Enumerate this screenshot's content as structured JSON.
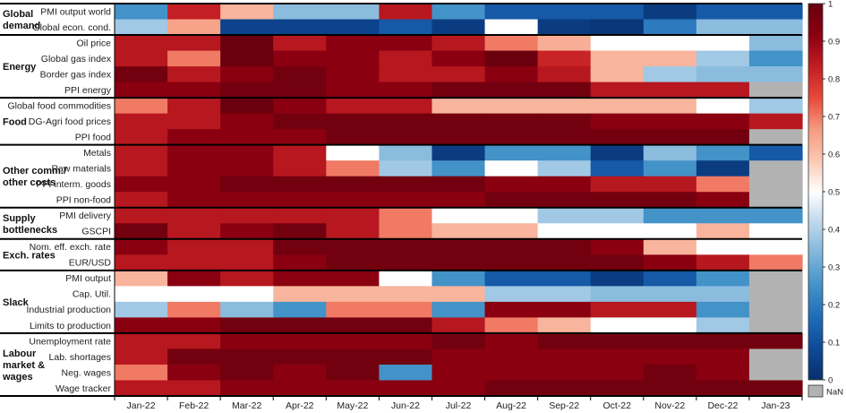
{
  "chart_data": {
    "type": "heatmap",
    "columns": [
      "Jan-22",
      "Feb-22",
      "Mar-22",
      "Apr-22",
      "May-22",
      "Jun-22",
      "Jul-22",
      "Aug-22",
      "Sep-22",
      "Oct-22",
      "Nov-22",
      "Dec-22",
      "Jan-23"
    ],
    "groups": [
      {
        "name": [
          "Global",
          "demand"
        ],
        "rows": [
          {
            "label": "PMI output world",
            "values": [
              0.25,
              0.83,
              0.62,
              0.35,
              0.35,
              0.85,
              0.25,
              0.12,
              0.12,
              0.12,
              0.04,
              0.12,
              0.12
            ]
          },
          {
            "label": "Global econ. cond.",
            "values": [
              0.38,
              0.65,
              0.06,
              0.06,
              0.06,
              0.12,
              0.04,
              0.5,
              0.04,
              0.02,
              0.2,
              0.35,
              0.35
            ]
          }
        ]
      },
      {
        "name": [
          "Energy"
        ],
        "rows": [
          {
            "label": "Oil price",
            "values": [
              0.85,
              0.85,
              0.99,
              0.85,
              0.92,
              0.92,
              0.85,
              0.7,
              0.63,
              0.5,
              0.5,
              0.5,
              0.35
            ]
          },
          {
            "label": "Global gas index",
            "values": [
              0.85,
              0.7,
              0.99,
              0.92,
              0.92,
              0.85,
              0.92,
              0.99,
              0.82,
              0.62,
              0.62,
              0.38,
              0.25
            ]
          },
          {
            "label": "Border gas index",
            "values": [
              0.97,
              0.85,
              0.92,
              0.97,
              0.92,
              0.85,
              0.85,
              0.92,
              0.85,
              0.62,
              0.38,
              0.35,
              0.35
            ]
          },
          {
            "label": "PPI energy",
            "values": [
              0.92,
              0.92,
              0.97,
              0.97,
              0.92,
              0.92,
              0.97,
              0.97,
              0.97,
              0.85,
              0.85,
              0.85,
              null
            ]
          }
        ]
      },
      {
        "name": [
          "Food"
        ],
        "rows": [
          {
            "label": "Global food commodities",
            "values": [
              0.7,
              0.85,
              0.99,
              0.92,
              0.85,
              0.85,
              0.62,
              0.62,
              0.62,
              0.62,
              0.62,
              0.5,
              0.38
            ]
          },
          {
            "label": "DG-Agri food prices",
            "values": [
              0.85,
              0.85,
              0.92,
              0.97,
              0.97,
              0.97,
              0.97,
              0.97,
              0.97,
              0.92,
              0.92,
              0.92,
              0.85
            ]
          },
          {
            "label": "PPI food",
            "values": [
              0.85,
              0.92,
              0.92,
              0.92,
              0.97,
              0.97,
              0.97,
              0.97,
              0.97,
              0.97,
              0.97,
              0.97,
              null
            ]
          }
        ]
      },
      {
        "name": [
          "Other comm./",
          "other costs"
        ],
        "rows": [
          {
            "label": "Metals",
            "values": [
              0.85,
              0.92,
              0.92,
              0.85,
              0.5,
              0.35,
              0.04,
              0.25,
              0.25,
              0.04,
              0.35,
              0.25,
              0.12
            ]
          },
          {
            "label": "Raw materials",
            "values": [
              0.85,
              0.92,
              0.92,
              0.85,
              0.7,
              0.38,
              0.25,
              0.5,
              0.38,
              0.12,
              0.25,
              0.04,
              null
            ]
          },
          {
            "label": "PPI interm. goods",
            "values": [
              0.92,
              0.92,
              0.97,
              0.97,
              0.97,
              0.97,
              0.97,
              0.92,
              0.92,
              0.85,
              0.85,
              0.7,
              null
            ]
          },
          {
            "label": "PPI non-food",
            "values": [
              0.85,
              0.92,
              0.92,
              0.92,
              0.92,
              0.92,
              0.92,
              0.97,
              0.97,
              0.97,
              0.97,
              0.92,
              null
            ]
          }
        ]
      },
      {
        "name": [
          "Supply",
          "bottlenecks"
        ],
        "rows": [
          {
            "label": "PMI delivery",
            "values": [
              0.85,
              0.85,
              0.85,
              0.85,
              0.85,
              0.7,
              0.5,
              0.5,
              0.38,
              0.38,
              0.25,
              0.25,
              0.25
            ]
          },
          {
            "label": "GSCPI",
            "values": [
              0.97,
              0.85,
              0.92,
              0.97,
              0.85,
              0.7,
              0.62,
              0.62,
              0.5,
              0.5,
              0.5,
              0.62,
              0.5
            ]
          }
        ]
      },
      {
        "name": [
          "Exch. rates"
        ],
        "rows": [
          {
            "label": "Nom. eff. exch. rate",
            "values": [
              0.92,
              0.85,
              0.85,
              0.97,
              0.97,
              0.97,
              0.97,
              0.97,
              0.97,
              0.92,
              0.62,
              0.5,
              0.5
            ]
          },
          {
            "label": "EUR/USD",
            "values": [
              0.85,
              0.85,
              0.85,
              0.92,
              0.97,
              0.97,
              0.97,
              0.97,
              0.97,
              0.97,
              0.92,
              0.85,
              0.7
            ]
          }
        ]
      },
      {
        "name": [
          "Slack"
        ],
        "rows": [
          {
            "label": "PMI output",
            "values": [
              0.62,
              0.92,
              0.85,
              0.92,
              0.92,
              0.5,
              0.25,
              0.12,
              0.12,
              0.04,
              0.12,
              0.25,
              null
            ]
          },
          {
            "label": "Cap. Util.",
            "values": [
              0.5,
              0.5,
              0.5,
              0.62,
              0.62,
              0.62,
              0.62,
              0.38,
              0.38,
              0.35,
              0.35,
              0.35,
              null
            ]
          },
          {
            "label": "Industrial production",
            "values": [
              0.38,
              0.7,
              0.35,
              0.25,
              0.7,
              0.7,
              0.25,
              0.92,
              0.92,
              0.85,
              0.85,
              0.25,
              null
            ]
          },
          {
            "label": "Limits to production",
            "values": [
              0.92,
              0.92,
              0.97,
              0.97,
              0.97,
              0.97,
              0.85,
              0.7,
              0.62,
              0.5,
              0.5,
              0.38,
              null
            ]
          }
        ]
      },
      {
        "name": [
          "Labour",
          "market &",
          "wages"
        ],
        "rows": [
          {
            "label": "Unemployment rate",
            "values": [
              0.85,
              0.85,
              0.92,
              0.92,
              0.92,
              0.92,
              0.97,
              0.92,
              0.97,
              0.97,
              0.97,
              0.97,
              0.97
            ]
          },
          {
            "label": "Lab. shortages",
            "values": [
              0.85,
              0.97,
              0.97,
              0.97,
              0.97,
              0.97,
              0.92,
              0.92,
              0.92,
              0.92,
              0.92,
              0.92,
              null
            ]
          },
          {
            "label": "Neg. wages",
            "values": [
              0.7,
              0.92,
              0.97,
              0.92,
              0.97,
              0.25,
              0.92,
              0.92,
              0.92,
              0.92,
              0.97,
              0.92,
              null
            ]
          },
          {
            "label": "Wage tracker",
            "values": [
              0.85,
              0.85,
              0.92,
              0.92,
              0.92,
              0.92,
              0.92,
              0.97,
              0.97,
              0.97,
              0.97,
              0.97,
              0.97
            ]
          }
        ]
      }
    ],
    "colorbar": {
      "ticks": [
        "0",
        "0.1",
        "0.2",
        "0.3",
        "0.4",
        "0.5",
        "0.6",
        "0.7",
        "0.8",
        "0.9",
        "1"
      ],
      "range": [
        0,
        1
      ],
      "colors": [
        "#08306b",
        "#0e4a99",
        "#1f6cb8",
        "#4392c8",
        "#7eb5da",
        "#bdd7ec",
        "#ffffff",
        "#fbc8b2",
        "#f59a80",
        "#e8493a",
        "#c21d23",
        "#8b0011",
        "#66000d"
      ],
      "nan_label": "NaN",
      "nan_color": "#b2b2b2"
    }
  }
}
